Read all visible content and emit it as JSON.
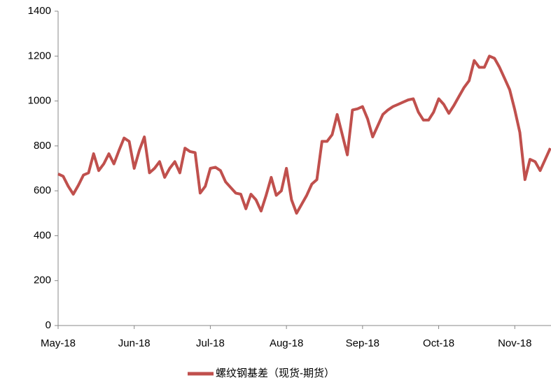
{
  "chart_data": {
    "type": "line",
    "categories": [
      "May-18",
      null,
      null,
      null,
      null,
      null,
      null,
      null,
      null,
      null,
      null,
      null,
      null,
      null,
      null,
      "Jun-18",
      null,
      null,
      null,
      null,
      null,
      null,
      null,
      null,
      null,
      null,
      null,
      null,
      null,
      null,
      "Jul-18",
      null,
      null,
      null,
      null,
      null,
      null,
      null,
      null,
      null,
      null,
      null,
      null,
      null,
      null,
      "Aug-18",
      null,
      null,
      null,
      null,
      null,
      null,
      null,
      null,
      null,
      null,
      null,
      null,
      null,
      null,
      "Sep-18",
      null,
      null,
      null,
      null,
      null,
      null,
      null,
      null,
      null,
      null,
      null,
      null,
      null,
      null,
      "Oct-18",
      null,
      null,
      null,
      null,
      null,
      null,
      null,
      null,
      null,
      null,
      null,
      null,
      null,
      null,
      "Nov-18",
      null,
      null,
      null,
      null,
      null,
      null,
      null
    ],
    "series": [
      {
        "name": "螺纹钢基差（现货-期货）",
        "color": "#c0504d",
        "values": [
          675,
          665,
          620,
          585,
          625,
          670,
          680,
          765,
          690,
          720,
          765,
          720,
          780,
          835,
          820,
          700,
          780,
          840,
          680,
          700,
          730,
          660,
          700,
          730,
          680,
          790,
          775,
          770,
          590,
          620,
          700,
          705,
          690,
          640,
          615,
          590,
          585,
          520,
          585,
          560,
          510,
          580,
          660,
          580,
          600,
          700,
          560,
          500,
          540,
          580,
          630,
          650,
          820,
          820,
          850,
          940,
          850,
          760,
          960,
          965,
          975,
          920,
          840,
          890,
          940,
          960,
          975,
          985,
          995,
          1005,
          1010,
          950,
          915,
          915,
          950,
          1010,
          985,
          945,
          980,
          1020,
          1060,
          1090,
          1180,
          1150,
          1150,
          1200,
          1190,
          1150,
          1100,
          1050,
          960,
          860,
          650,
          740,
          730,
          690,
          740,
          790
        ]
      }
    ],
    "ylim": [
      0,
      1400
    ],
    "yticks": [
      0,
      200,
      400,
      600,
      800,
      1000,
      1200,
      1400
    ],
    "grid": false,
    "legend": "bottom"
  }
}
